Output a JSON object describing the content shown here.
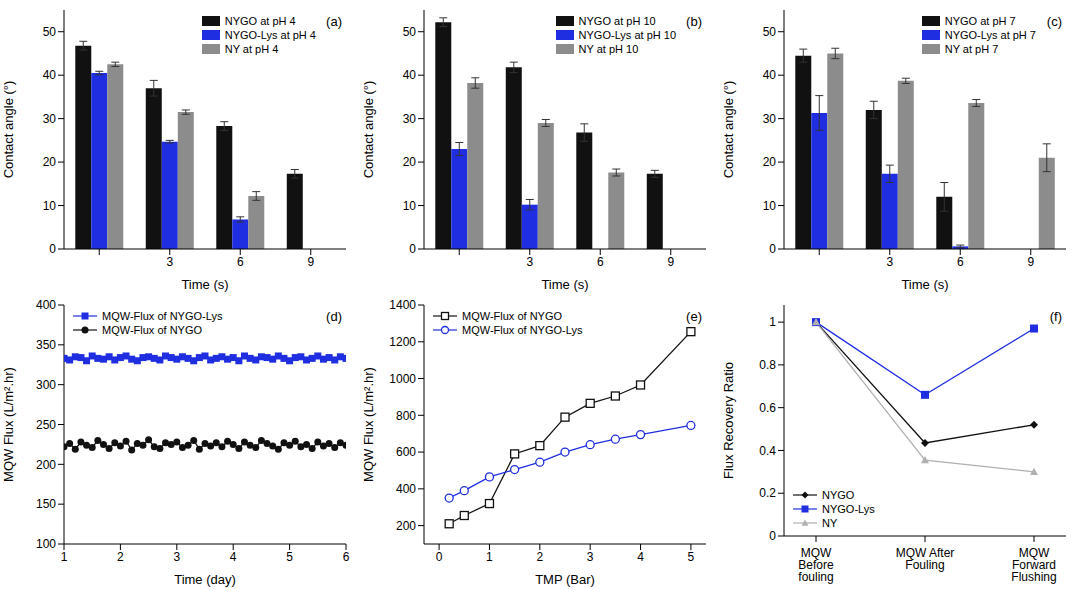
{
  "chart_data": [
    {
      "type": "bar",
      "label": "(a)",
      "x_label": "Time (s)",
      "y_label": "Contact angle (°)",
      "categories": [
        null,
        "3",
        "6",
        "9"
      ],
      "ylim": [
        0,
        55
      ],
      "yticks": [
        0,
        10,
        20,
        30,
        40,
        50
      ],
      "grid": false,
      "legend": "upper right",
      "series": [
        {
          "name": "NYGO at pH 4",
          "color": "#111111",
          "values": [
            46.8,
            37,
            28.3,
            17.3
          ],
          "errors": [
            1,
            1.8,
            1,
            1
          ]
        },
        {
          "name": "NYGO-Lys at pH 4",
          "color": "#1f2ee0",
          "values": [
            40.5,
            24.7,
            6.8,
            null
          ],
          "errors": [
            0.4,
            0.3,
            0.6,
            null
          ]
        },
        {
          "name": "NY at pH 4",
          "color": "#8c8c8c",
          "values": [
            42.5,
            31.5,
            12.2,
            null
          ],
          "errors": [
            0.5,
            0.5,
            1,
            null
          ]
        }
      ]
    },
    {
      "type": "bar",
      "label": "(b)",
      "x_label": "Time (s)",
      "y_label": "Contact angle (°)",
      "categories": [
        null,
        "3",
        "6",
        "9"
      ],
      "ylim": [
        0,
        55
      ],
      "yticks": [
        0,
        10,
        20,
        30,
        40,
        50
      ],
      "grid": false,
      "legend": "upper right",
      "series": [
        {
          "name": "NYGO at pH 10",
          "color": "#111111",
          "values": [
            52.2,
            41.8,
            26.8,
            17.3
          ],
          "errors": [
            1,
            1.2,
            2,
            0.8
          ]
        },
        {
          "name": "NYGO-Lys at pH 10",
          "color": "#1f2ee0",
          "values": [
            23,
            10.2,
            null,
            null
          ],
          "errors": [
            1.5,
            1.2,
            null,
            null
          ]
        },
        {
          "name": "NY at pH 10",
          "color": "#8c8c8c",
          "values": [
            38.2,
            29,
            17.6,
            null
          ],
          "errors": [
            1.2,
            0.8,
            0.8,
            null
          ]
        }
      ]
    },
    {
      "type": "bar",
      "label": "(c)",
      "x_label": "Time (s)",
      "y_label": "Contact angle (°)",
      "categories": [
        null,
        "3",
        "6",
        "9"
      ],
      "ylim": [
        0,
        55
      ],
      "yticks": [
        0,
        10,
        20,
        30,
        40,
        50
      ],
      "grid": false,
      "legend": "upper right",
      "series": [
        {
          "name": "NYGO at pH 7",
          "color": "#111111",
          "values": [
            44.5,
            32,
            12,
            null
          ],
          "errors": [
            1.5,
            2,
            3.3,
            null
          ]
        },
        {
          "name": "NYGO-Lys at pH 7",
          "color": "#1f2ee0",
          "values": [
            31.3,
            17.3,
            0.6,
            null
          ],
          "errors": [
            4,
            2,
            0.3,
            null
          ]
        },
        {
          "name": "NY at pH 7",
          "color": "#8c8c8c",
          "values": [
            45,
            38.7,
            33.6,
            21
          ],
          "errors": [
            1.2,
            0.6,
            0.8,
            3.2
          ]
        }
      ]
    },
    {
      "type": "line",
      "label": "(d)",
      "x_label": "Time (day)",
      "y_label": "MQW Flux (L/m².hr)",
      "x": [
        1,
        1.1,
        1.2,
        1.3,
        1.4,
        1.5,
        1.6,
        1.7,
        1.8,
        1.9,
        2,
        2.1,
        2.2,
        2.3,
        2.4,
        2.5,
        2.6,
        2.7,
        2.8,
        2.9,
        3,
        3.1,
        3.2,
        3.3,
        3.4,
        3.5,
        3.6,
        3.7,
        3.8,
        3.9,
        4,
        4.1,
        4.2,
        4.3,
        4.4,
        4.5,
        4.6,
        4.7,
        4.8,
        4.9,
        5,
        5.1,
        5.2,
        5.3,
        5.4,
        5.5,
        5.6,
        5.7,
        5.8,
        5.9,
        6
      ],
      "xlim": [
        1,
        6
      ],
      "xticks": [
        1,
        2,
        3,
        4,
        5,
        6
      ],
      "ylim": [
        100,
        400
      ],
      "yticks": [
        100,
        150,
        200,
        250,
        300,
        350,
        400
      ],
      "grid": false,
      "legend": "upper left",
      "series": [
        {
          "name": "MQW-Flux of NYGO-Lys",
          "color": "#1f2ee0",
          "marker": "square",
          "values": [
            333,
            331,
            335,
            334,
            330,
            336,
            333,
            332,
            335,
            331,
            334,
            336,
            332,
            330,
            334,
            335,
            333,
            331,
            336,
            334,
            332,
            335,
            333,
            330,
            334,
            336,
            331,
            333,
            335,
            332,
            334,
            330,
            336,
            333,
            331,
            335,
            334,
            332,
            336,
            333,
            330,
            334,
            335,
            331,
            333,
            336,
            332,
            334,
            331,
            335,
            333
          ]
        },
        {
          "name": "MQW-Flux of NYGO",
          "color": "#111111",
          "marker": "circle",
          "values": [
            222,
            226,
            219,
            228,
            224,
            221,
            230,
            225,
            220,
            227,
            223,
            229,
            218,
            226,
            224,
            231,
            222,
            220,
            227,
            225,
            228,
            221,
            224,
            230,
            219,
            226,
            223,
            227,
            222,
            229,
            225,
            220,
            228,
            224,
            221,
            230,
            226,
            223,
            219,
            227,
            224,
            229,
            222,
            225,
            220,
            228,
            223,
            226,
            221,
            227,
            224
          ]
        }
      ]
    },
    {
      "type": "line",
      "label": "(e)",
      "x_label": "TMP (Bar)",
      "y_label": "MQW Flux (L/m².hr)",
      "x": [
        0.2,
        0.5,
        1,
        1.5,
        2,
        2.5,
        3,
        3.5,
        4,
        5
      ],
      "xlim": [
        -0.3,
        5.3
      ],
      "xticks": [
        0,
        1,
        2,
        3,
        4,
        5
      ],
      "ylim": [
        100,
        1400
      ],
      "yticks": [
        200,
        400,
        600,
        800,
        1000,
        1200,
        1400
      ],
      "grid": false,
      "legend": "upper left",
      "series": [
        {
          "name": "MQW-Flux of NYGO",
          "color": "#111111",
          "marker": "open_square",
          "values": [
            210,
            255,
            320,
            590,
            635,
            790,
            865,
            905,
            965,
            1255
          ]
        },
        {
          "name": "MQW-Flux of NYGO-Lys",
          "color": "#1f2ee0",
          "marker": "open_circle",
          "values": [
            350,
            390,
            465,
            505,
            545,
            600,
            640,
            670,
            695,
            745
          ]
        }
      ]
    },
    {
      "type": "line",
      "label": "(f)",
      "y_label": "Flux Recovery Ratio",
      "categories": [
        "MQW Before fouling",
        "MQW After Fouling",
        "MQW Forward Flushing"
      ],
      "ylim": [
        0,
        1.08
      ],
      "yticks": [
        0,
        0.2,
        0.4,
        0.6,
        0.8,
        1
      ],
      "grid": false,
      "legend": "lower left",
      "series": [
        {
          "name": "NYGO",
          "color": "#111111",
          "marker": "diamond",
          "values": [
            1,
            0.435,
            0.52
          ]
        },
        {
          "name": "NYGO-Lys",
          "color": "#1f2ee0",
          "marker": "square",
          "values": [
            1,
            0.66,
            0.97
          ]
        },
        {
          "name": "NY",
          "color": "#b0b0b0",
          "marker": "triangle",
          "values": [
            1,
            0.355,
            0.3
          ]
        }
      ]
    }
  ]
}
